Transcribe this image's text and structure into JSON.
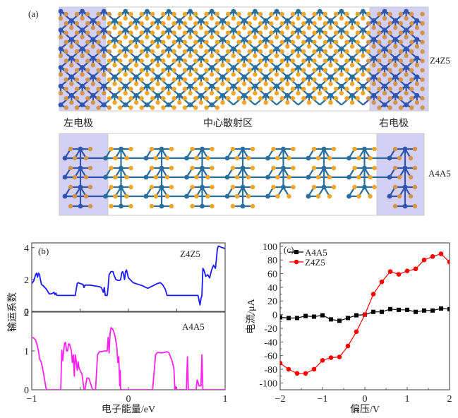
{
  "panel_a": {
    "label": "(a)",
    "structures": [
      {
        "name": "Z4Z5",
        "type": "zigzag",
        "center_cols": 16,
        "rows_full": 6,
        "step_after_col": 7
      },
      {
        "name": "A4A5",
        "type": "armchair",
        "center_units": 7,
        "units_full": 3
      }
    ],
    "region_labels": {
      "left": "左电极",
      "center": "中心散射区",
      "right": "右电极"
    },
    "colors": {
      "electrode_bg": "#d4d0f4",
      "metal_atom": "#2a6e9e",
      "metal_atom_electrode": "#2f55b0",
      "chalcogen_atom": "#f0a628",
      "chalcogen_atom_electrode": "#d0954a",
      "border": "#c8c8c8"
    }
  },
  "chart_data": [
    {
      "id": "panel_b_top",
      "type": "line",
      "title": "",
      "panel_label": "(b)",
      "annotation": "Z4Z5",
      "xlabel": "电子能量/eV",
      "ylabel": "输运系数",
      "xlim": [
        -1,
        1
      ],
      "ylim": [
        0,
        4.3
      ],
      "yticks": [
        0,
        2,
        4
      ],
      "xticks": [
        -1,
        0,
        1
      ],
      "color": "#1a1aff",
      "series": [
        {
          "name": "Z4Z5",
          "x": [
            -1.0,
            -0.98,
            -0.96,
            -0.95,
            -0.94,
            -0.93,
            -0.92,
            -0.91,
            -0.9,
            -0.88,
            -0.85,
            -0.82,
            -0.8,
            -0.78,
            -0.77,
            -0.76,
            -0.75,
            -0.74,
            -0.73,
            -0.72,
            -0.7,
            -0.65,
            -0.6,
            -0.55,
            -0.53,
            -0.52,
            -0.5,
            -0.47,
            -0.46,
            -0.45,
            -0.44,
            -0.4,
            -0.35,
            -0.3,
            -0.28,
            -0.27,
            -0.26,
            -0.25,
            -0.24,
            -0.23,
            -0.22,
            -0.21,
            -0.2,
            -0.18,
            -0.16,
            -0.15,
            -0.13,
            -0.11,
            -0.1,
            -0.09,
            -0.08,
            -0.07,
            -0.06,
            -0.05,
            -0.04,
            -0.03,
            -0.02,
            0.0,
            0.05,
            0.1,
            0.15,
            0.18,
            0.2,
            0.25,
            0.3,
            0.33,
            0.35,
            0.38,
            0.4,
            0.42,
            0.5,
            0.55,
            0.6,
            0.65,
            0.7,
            0.72,
            0.73,
            0.74,
            0.75,
            0.76,
            0.77,
            0.78,
            0.8,
            0.82,
            0.84,
            0.86,
            0.88,
            0.89,
            0.9,
            0.91,
            0.92,
            0.93,
            0.95,
            0.97,
            1.0
          ],
          "y": [
            1.75,
            1.9,
            2.3,
            2.4,
            2.15,
            2.4,
            2.3,
            2.0,
            1.7,
            1.6,
            1.4,
            1.1,
            1.1,
            1.15,
            1.2,
            1.05,
            1.15,
            1.0,
            1.0,
            1.0,
            1.0,
            1.0,
            1.0,
            1.0,
            1.75,
            1.8,
            1.75,
            1.7,
            1.5,
            1.65,
            1.65,
            1.65,
            1.6,
            1.55,
            1.5,
            1.35,
            1.2,
            1.5,
            1.0,
            1.0,
            1.0,
            1.5,
            2.3,
            2.5,
            2.5,
            2.3,
            2.0,
            1.95,
            1.95,
            1.95,
            2.0,
            2.4,
            2.5,
            2.3,
            2.0,
            2.5,
            2.6,
            2.1,
            1.8,
            1.7,
            1.6,
            1.5,
            1.45,
            1.6,
            1.75,
            1.8,
            1.7,
            1.4,
            1.0,
            1.0,
            1.0,
            1.0,
            1.0,
            1.0,
            1.0,
            1.0,
            0.7,
            0.4,
            0.8,
            1.0,
            2.7,
            2.6,
            2.2,
            2.3,
            2.1,
            2.6,
            2.9,
            2.8,
            2.7,
            3.3,
            3.9,
            4.1,
            4.05,
            4.0,
            3.95
          ]
        }
      ]
    },
    {
      "id": "panel_b_bottom",
      "type": "line",
      "title": "",
      "annotation": "A4A5",
      "xlabel": "电子能量/eV",
      "ylabel": "输运系数",
      "xlim": [
        -1,
        1
      ],
      "ylim": [
        0,
        2
      ],
      "yticks": [
        0,
        1,
        2
      ],
      "xticks": [
        -1,
        0,
        1
      ],
      "color": "#ff22ee",
      "series": [
        {
          "name": "A4A5",
          "x": [
            -1.0,
            -0.98,
            -0.96,
            -0.95,
            -0.93,
            -0.92,
            -0.9,
            -0.88,
            -0.86,
            -0.85,
            -0.7,
            -0.69,
            -0.68,
            -0.67,
            -0.66,
            -0.65,
            -0.64,
            -0.63,
            -0.62,
            -0.61,
            -0.6,
            -0.59,
            -0.58,
            -0.57,
            -0.56,
            -0.55,
            -0.54,
            -0.53,
            -0.52,
            -0.51,
            -0.5,
            -0.48,
            -0.46,
            -0.45,
            -0.43,
            -0.41,
            -0.39,
            -0.37,
            -0.35,
            -0.34,
            -0.32,
            -0.3,
            -0.28,
            -0.25,
            -0.22,
            -0.21,
            -0.2,
            -0.19,
            -0.18,
            -0.16,
            -0.14,
            -0.12,
            -0.11,
            -0.1,
            -0.09,
            -0.085,
            -0.08,
            -0.07,
            -0.06,
            -0.055,
            -0.05,
            0.0,
            0.1,
            0.2,
            0.25,
            0.28,
            0.3,
            0.35,
            0.4,
            0.42,
            0.45,
            0.47,
            0.48,
            0.49,
            0.5,
            0.51,
            0.6,
            0.61,
            0.62,
            0.63,
            0.64,
            0.7,
            0.71,
            0.72,
            0.73,
            0.74,
            0.75,
            0.76,
            0.77,
            0.78,
            1.0
          ],
          "y": [
            1.35,
            1.33,
            1.28,
            1.2,
            1.0,
            0.8,
            0.7,
            0.45,
            0.15,
            0.0,
            0.0,
            1.02,
            0.75,
            1.0,
            1.2,
            1.22,
            1.0,
            1.0,
            1.18,
            1.18,
            1.1,
            1.0,
            0.7,
            0.9,
            0.35,
            0.9,
            0.75,
            0.5,
            0.72,
            0.55,
            0.5,
            0.4,
            0.0,
            0.0,
            0.3,
            0.3,
            0.15,
            0.0,
            0.0,
            0.0,
            0.9,
            0.98,
            0.98,
            1.0,
            1.0,
            1.35,
            0.95,
            1.45,
            1.6,
            1.55,
            1.4,
            1.1,
            0.7,
            0.85,
            0.1,
            0.5,
            0.0,
            0.0,
            0.0,
            0.0,
            0.0,
            0.0,
            0.0,
            0.0,
            0.0,
            0.9,
            0.96,
            0.95,
            0.98,
            0.95,
            0.75,
            0.55,
            0.0,
            0.08,
            0.0,
            0.0,
            0.0,
            0.85,
            0.0,
            0.0,
            0.0,
            0.0,
            0.25,
            0.2,
            0.1,
            0.1,
            0.1,
            0.9,
            0.0,
            0.0,
            0.0
          ]
        }
      ]
    },
    {
      "id": "panel_c",
      "type": "line",
      "title": "",
      "panel_label": "(c)",
      "xlabel": "偏压/V",
      "ylabel": "电流/μA",
      "xlim": [
        -2,
        2
      ],
      "ylim": [
        -110,
        105
      ],
      "yticks": [
        -100,
        -80,
        -60,
        -40,
        -20,
        0,
        20,
        40,
        60,
        80,
        100
      ],
      "xticks": [
        -2,
        -1,
        0,
        1,
        2
      ],
      "legend": "top-left",
      "x": [
        -2.0,
        -1.8,
        -1.6,
        -1.4,
        -1.2,
        -1.0,
        -0.8,
        -0.6,
        -0.4,
        -0.2,
        0.0,
        0.2,
        0.4,
        0.6,
        0.8,
        1.0,
        1.2,
        1.4,
        1.6,
        1.8,
        2.0
      ],
      "series": [
        {
          "name": "A4A5",
          "color": "#000000",
          "marker": "square",
          "values": [
            -4,
            -5,
            -5,
            -2,
            -3,
            -1,
            -7,
            -9,
            -5,
            -1,
            0,
            4,
            4,
            8,
            7,
            7,
            4,
            6,
            6,
            9,
            8
          ]
        },
        {
          "name": "Z4Z5",
          "color": "#ff0000",
          "marker": "circle",
          "values": [
            -71,
            -80,
            -86,
            -86,
            -80,
            -67,
            -63,
            -62,
            -46,
            -25,
            0,
            30,
            48,
            63,
            59,
            64,
            67,
            80,
            85,
            89,
            77
          ]
        }
      ]
    }
  ]
}
